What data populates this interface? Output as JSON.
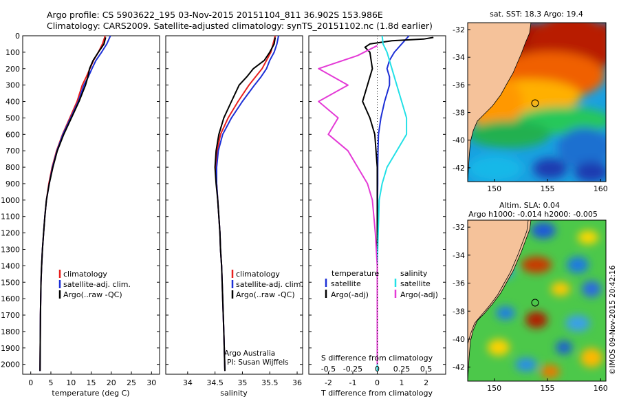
{
  "header": {
    "line1": "Argo profile: CS 5903622_195 03-Nov-2015 20151104_811 36.902S 153.986E",
    "line2": "Climatology: CARS2009. Satellite-adjusted climatology: synTS_20151102.nc (1.8d earlier)"
  },
  "credits": {
    "stamp": "©IMOS 09-Nov-2015 20:42:16",
    "institution": "Argo Australia",
    "pi": "PI: Susan Wijffels"
  },
  "legend": {
    "climatology": "climatology",
    "satellite_adj": "satellite-adj. clim.",
    "argo": "Argo(..raw -QC)",
    "temperature_header": "temperature",
    "salinity_header": "salinity",
    "satellite": "satellite",
    "argo_adj": "Argo(-adj)"
  },
  "colors": {
    "climatology": "#e8201e",
    "satellite": "#1c2fd6",
    "argo": "#000000",
    "sal_satellite": "#22e0e6",
    "sal_argo": "#e43ad6",
    "land": "#f5c29a"
  },
  "chart_data": [
    {
      "type": "line",
      "title": "",
      "xlabel": "temperature (deg C)",
      "ylabel": "",
      "xlim": [
        -2,
        32
      ],
      "ylim": [
        2060,
        0
      ],
      "xticks": [
        "0",
        "5",
        "10",
        "15",
        "20",
        "25",
        "30"
      ],
      "yticks": [
        "0",
        "100",
        "200",
        "300",
        "400",
        "500",
        "600",
        "700",
        "800",
        "900",
        "1000",
        "1100",
        "1200",
        "1300",
        "1400",
        "1500",
        "1600",
        "1700",
        "1800",
        "1900",
        "2000"
      ],
      "series": [
        {
          "name": "climatology",
          "color": "#e8201e",
          "x": [
            18.5,
            17.8,
            16.8,
            15.6,
            14.7,
            13.8,
            12.8,
            11.5,
            9.7,
            7.9,
            6.4,
            5.3,
            4.5,
            3.9,
            3.5,
            3.2,
            2.9,
            2.7,
            2.55,
            2.4,
            2.3
          ],
          "y": [
            0,
            50,
            100,
            150,
            200,
            250,
            300,
            400,
            500,
            600,
            700,
            800,
            900,
            1000,
            1100,
            1200,
            1300,
            1400,
            1500,
            1700,
            2040
          ]
        },
        {
          "name": "satellite-adj. clim.",
          "color": "#1c2fd6",
          "x": [
            19.8,
            18.9,
            17.6,
            16.2,
            15.2,
            14.3,
            13.2,
            11.8,
            9.9,
            8.0,
            6.5,
            5.4,
            4.6,
            3.9,
            3.5,
            3.2,
            2.9,
            2.7,
            2.55,
            2.4,
            2.3
          ],
          "y": [
            0,
            50,
            100,
            150,
            200,
            250,
            300,
            400,
            500,
            600,
            700,
            800,
            900,
            1000,
            1100,
            1200,
            1300,
            1400,
            1500,
            1700,
            2040
          ]
        },
        {
          "name": "Argo(..raw -QC)",
          "color": "#000000",
          "x": [
            18.6,
            18.2,
            16.8,
            15.5,
            14.6,
            14.2,
            13.6,
            12.0,
            10.1,
            8.2,
            6.6,
            5.5,
            4.6,
            3.9,
            3.5,
            3.2,
            2.9,
            2.7,
            2.55,
            2.4,
            2.3
          ],
          "y": [
            10,
            50,
            100,
            150,
            200,
            250,
            300,
            400,
            500,
            600,
            700,
            800,
            900,
            1000,
            1100,
            1200,
            1300,
            1400,
            1500,
            1700,
            2040
          ]
        }
      ]
    },
    {
      "type": "line",
      "title": "",
      "xlabel": "salinity",
      "ylabel": "",
      "xlim": [
        33.6,
        36.1
      ],
      "ylim": [
        2060,
        0
      ],
      "xticks": [
        "34",
        "34.5",
        "35",
        "35.5",
        "36"
      ],
      "series": [
        {
          "name": "climatology",
          "color": "#e8201e",
          "x": [
            35.6,
            35.56,
            35.52,
            35.44,
            35.36,
            35.24,
            35.12,
            34.92,
            34.74,
            34.6,
            34.54,
            34.52,
            34.53,
            34.55,
            34.57,
            34.59,
            34.6,
            34.62,
            34.64,
            34.66,
            34.68
          ],
          "y": [
            0,
            50,
            100,
            150,
            200,
            250,
            300,
            400,
            500,
            600,
            700,
            800,
            900,
            1000,
            1100,
            1200,
            1300,
            1400,
            1600,
            1800,
            2040
          ]
        },
        {
          "name": "satellite-adj. clim.",
          "color": "#1c2fd6",
          "x": [
            35.66,
            35.63,
            35.58,
            35.5,
            35.44,
            35.34,
            35.22,
            35.0,
            34.8,
            34.64,
            34.56,
            34.53,
            34.53,
            34.55,
            34.57,
            34.59,
            34.6,
            34.62,
            34.64,
            34.66,
            34.68
          ],
          "y": [
            0,
            50,
            100,
            150,
            200,
            250,
            300,
            400,
            500,
            600,
            700,
            800,
            900,
            1000,
            1100,
            1200,
            1300,
            1400,
            1600,
            1800,
            2040
          ]
        },
        {
          "name": "Argo(..raw -QC)",
          "color": "#000000",
          "x": [
            35.6,
            35.58,
            35.5,
            35.4,
            35.2,
            35.08,
            34.94,
            34.8,
            34.66,
            34.57,
            34.52,
            34.5,
            34.52,
            34.55,
            34.57,
            34.59,
            34.6,
            34.62,
            34.64,
            34.66,
            34.68
          ],
          "y": [
            10,
            50,
            100,
            150,
            200,
            250,
            300,
            400,
            500,
            600,
            700,
            800,
            900,
            1000,
            1100,
            1200,
            1300,
            1400,
            1600,
            1800,
            2040
          ]
        }
      ]
    },
    {
      "type": "line",
      "title": "",
      "xlabel": "T difference from climatology",
      "xlabel2": "S difference from climatology",
      "ylabel": "",
      "xlim": [
        -2.8,
        2.8
      ],
      "ylim": [
        2060,
        0
      ],
      "xticks": [
        "-2",
        "-1",
        "0",
        "1",
        "2"
      ],
      "xticks2": [
        "-0.5",
        "-0.25",
        "0",
        "0.25",
        "0.5"
      ],
      "series": [
        {
          "name": "satellite",
          "color": "#1c2fd6",
          "x": [
            1.3,
            1.0,
            0.7,
            0.5,
            0.4,
            0.5,
            0.5,
            0.3,
            0.15,
            0.05,
            0.03,
            0.02,
            0.02,
            0.01,
            0.01,
            0.0,
            0.0,
            0.0
          ],
          "y": [
            0,
            50,
            100,
            150,
            200,
            250,
            300,
            400,
            500,
            600,
            700,
            800,
            900,
            1000,
            1200,
            1400,
            1700,
            2040
          ]
        },
        {
          "name": "Argo(-adj)",
          "color": "#000000",
          "x": [
            2.3,
            1.9,
            0.6,
            -0.3,
            -0.5,
            -0.3,
            -0.2,
            -0.6,
            -0.3,
            -0.1,
            -0.05,
            0.0,
            0.0,
            0.0,
            0.0,
            0.0,
            0.0,
            0.0
          ],
          "y": [
            10,
            20,
            30,
            50,
            70,
            100,
            200,
            400,
            500,
            600,
            700,
            800,
            900,
            1000,
            1200,
            1400,
            1700,
            2040
          ]
        },
        {
          "name": "salinity satellite",
          "color": "#22e0e6",
          "x": [
            0.05,
            0.06,
            0.1,
            0.15,
            0.2,
            0.25,
            0.3,
            0.3,
            0.2,
            0.1,
            0.05,
            0.02,
            0.01,
            0.0,
            0.0,
            0.0
          ],
          "y": [
            0,
            50,
            100,
            200,
            300,
            400,
            500,
            600,
            700,
            800,
            900,
            1000,
            1200,
            1400,
            1700,
            2040
          ]
        },
        {
          "name": "salinity Argo(-adj)",
          "color": "#e43ad6",
          "x": [
            0.0,
            -0.2,
            -0.6,
            -0.3,
            -0.6,
            -0.4,
            -0.5,
            -0.3,
            -0.2,
            -0.1,
            -0.05,
            -0.02,
            0.0,
            0.0
          ],
          "y": [
            60,
            120,
            200,
            300,
            400,
            500,
            600,
            700,
            800,
            900,
            1000,
            1200,
            1400,
            2000
          ]
        }
      ]
    },
    {
      "type": "heatmap",
      "title": "sat. SST: 18.3 Argo: 19.4",
      "xlabel": "",
      "ylabel": "",
      "xlim": [
        147.5,
        160.5
      ],
      "ylim": [
        -43,
        -31.5
      ],
      "xticks": [
        "150",
        "155",
        "160"
      ],
      "yticks": [
        "-32",
        "-34",
        "-36",
        "-38",
        "-40",
        "-42"
      ],
      "marker": {
        "lon": 154.0,
        "lat": -36.9
      }
    },
    {
      "type": "heatmap",
      "title": "Altim. SLA: 0.04",
      "subtitle": "Argo h1000: -0.014 h2000: -0.005",
      "xlabel": "",
      "ylabel": "",
      "xlim": [
        147.5,
        160.5
      ],
      "ylim": [
        -43,
        -31.5
      ],
      "xticks": [
        "150",
        "155",
        "160"
      ],
      "yticks": [
        "-32",
        "-34",
        "-36",
        "-38",
        "-40",
        "-42"
      ],
      "marker": {
        "lon": 154.0,
        "lat": -36.9
      }
    }
  ]
}
